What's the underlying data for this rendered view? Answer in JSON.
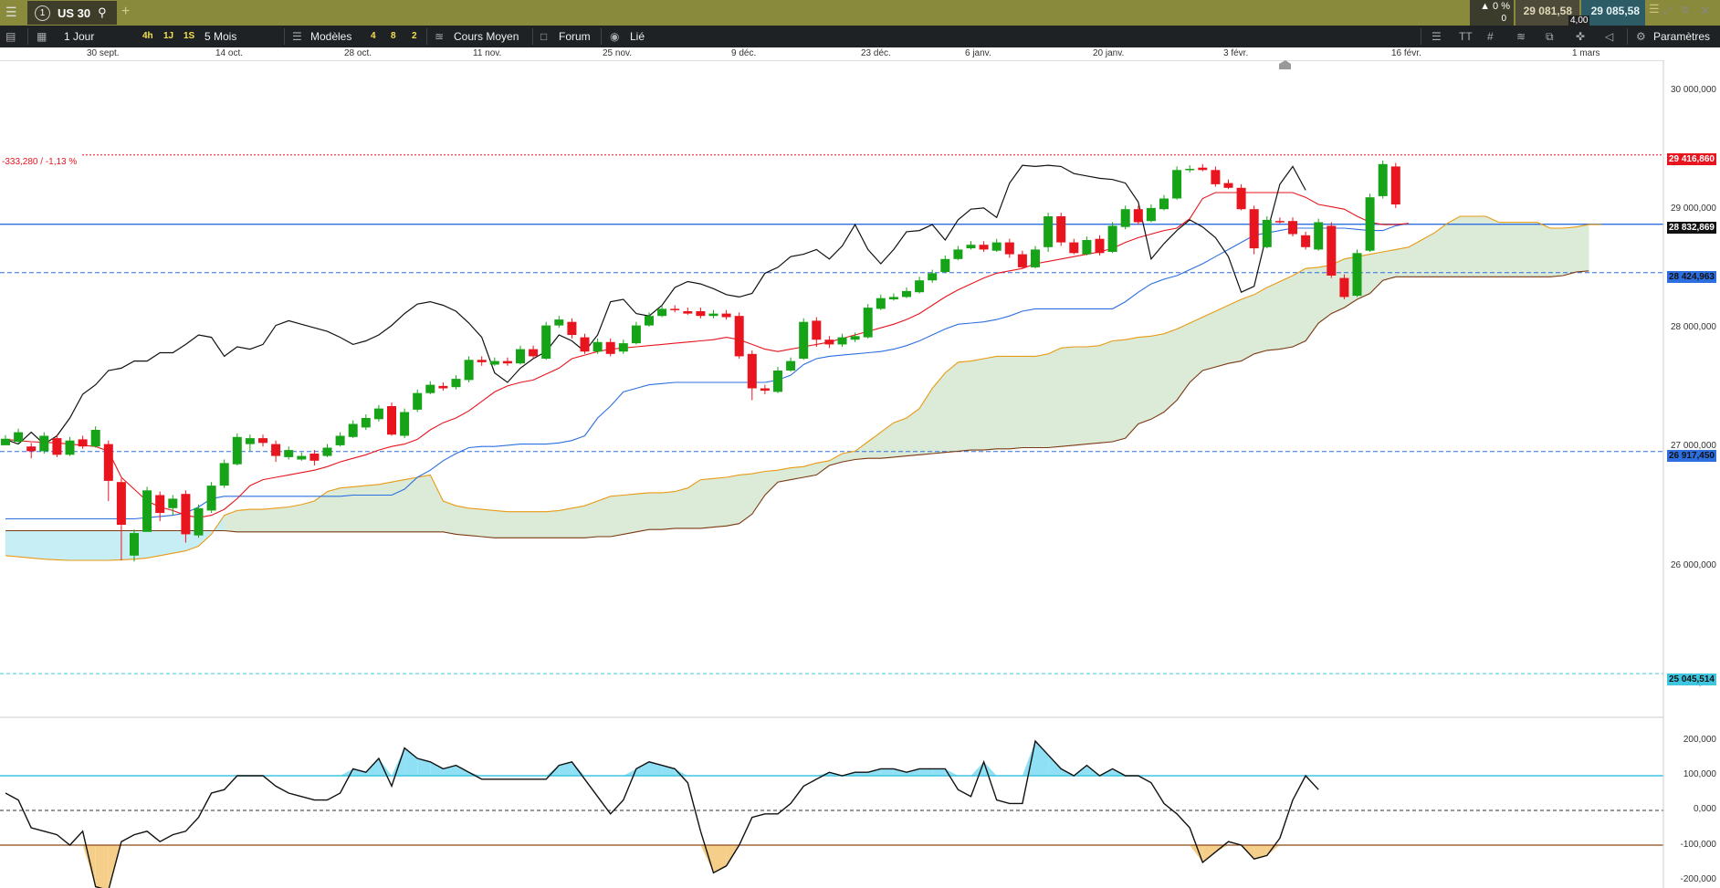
{
  "topbar": {
    "tab_number": "1",
    "tab_symbol": "US 30",
    "change_pct": "▲ 0 %",
    "change_count": "0",
    "bid": "29 081,58",
    "ask": "29 085,58",
    "spread": "4,00"
  },
  "toolbar": {
    "interval": "1 Jour",
    "btn_4h": "4h",
    "btn_1j": "1J",
    "btn_1s": "1S",
    "period": "5 Mois",
    "models": "Modèles",
    "n4": "4",
    "n8": "8",
    "n2": "2",
    "cours_moyen": "Cours Moyen",
    "forum": "Forum",
    "lie": "Lié",
    "font_btn": "TT",
    "params": "Paramètres"
  },
  "date_axis": [
    "30 sept.",
    "14 oct.",
    "28 oct.",
    "11 nov.",
    "25 nov.",
    "9 déc.",
    "23 déc.",
    "6 janv.",
    "20 janv.",
    "3 févr.",
    "16 févr.",
    "1 mars"
  ],
  "price_axis": [
    "30 000,000",
    "29 000,000",
    "28 000,000",
    "27 000,000",
    "26 000,000",
    "25 000,000"
  ],
  "osc_axis": [
    "200,000",
    "100,000",
    "0,000",
    "-100,000",
    "-200,000"
  ],
  "price_boxes": {
    "last": "29 416,860",
    "line1": "28 832,869",
    "line2": "28 424,963",
    "line3": "26 917,450",
    "line4": "25 045,514"
  },
  "change_label": "-333,280 / -1,13 %",
  "colors": {
    "bull": "#17a317",
    "bear": "#e8141e",
    "tenkan": "#e8141e",
    "kijun": "#2d6fe0",
    "chikou": "#111111",
    "senkou_a": "#e89a14",
    "senkou_b": "#7a3a12",
    "cloud": "#dcebd8",
    "cloud_alt": "#c8eef5",
    "hline_main": "#2d6fe0",
    "osc_pos": "#8fe0f5",
    "osc_neg": "#f5cf8a"
  },
  "chart_data": {
    "type": "candlestick",
    "instrument": "US 30",
    "x_range": [
      "30 sept.",
      "1 mars"
    ],
    "y_range": [
      25000,
      30400
    ],
    "last_price": 29416.86,
    "horizontal_levels": [
      28832.869,
      28424.963,
      26917.45,
      25045.514
    ],
    "candles": [
      [
        26970,
        27025,
        27000
      ],
      [
        27000,
        27080,
        26980
      ],
      [
        26960,
        26920,
        26860
      ],
      [
        26920,
        27050,
        26900
      ],
      [
        27030,
        26890,
        26870
      ],
      [
        26890,
        27010,
        26880
      ],
      [
        27020,
        26960,
        26940
      ],
      [
        26960,
        27100,
        26950
      ],
      [
        26980,
        26670,
        26500
      ],
      [
        26660,
        26300,
        26000
      ],
      [
        26040,
        26230,
        25990
      ],
      [
        26240,
        26590,
        26280
      ],
      [
        26550,
        26400,
        26330
      ],
      [
        26440,
        26520,
        26380
      ],
      [
        26560,
        26220,
        26150
      ],
      [
        26210,
        26440,
        26190
      ],
      [
        26420,
        26630,
        26400
      ],
      [
        26630,
        26820,
        26610
      ],
      [
        26810,
        27040,
        26800
      ],
      [
        26980,
        27030,
        26920
      ],
      [
        27030,
        26990,
        26960
      ],
      [
        26980,
        26880,
        26830
      ],
      [
        26870,
        26930,
        26850
      ],
      [
        26850,
        26880,
        26840
      ],
      [
        26900,
        26840,
        26800
      ],
      [
        26880,
        26950,
        26870
      ],
      [
        26970,
        27050,
        26960
      ],
      [
        27040,
        27150,
        27030
      ],
      [
        27120,
        27200,
        27100
      ],
      [
        27190,
        27280,
        27170
      ],
      [
        27300,
        27060,
        27050
      ],
      [
        27050,
        27250,
        27030
      ],
      [
        27270,
        27410,
        27250
      ],
      [
        27410,
        27480,
        27400
      ],
      [
        27470,
        27450,
        27430
      ],
      [
        27460,
        27530,
        27440
      ],
      [
        27520,
        27690,
        27500
      ],
      [
        27690,
        27670,
        27640
      ],
      [
        27650,
        27680,
        27640
      ],
      [
        27680,
        27660,
        27640
      ],
      [
        27660,
        27780,
        27650
      ],
      [
        27780,
        27720,
        27700
      ],
      [
        27700,
        27980,
        27690
      ],
      [
        27980,
        28030,
        27960
      ],
      [
        28010,
        27900,
        27870
      ],
      [
        27880,
        27760,
        27740
      ],
      [
        27760,
        27840,
        27740
      ],
      [
        27840,
        27740,
        27720
      ],
      [
        27760,
        27830,
        27740
      ],
      [
        27830,
        27980,
        27820
      ],
      [
        27980,
        28060,
        27970
      ],
      [
        28060,
        28120,
        28050
      ],
      [
        28120,
        28110,
        28090
      ],
      [
        28100,
        28080,
        28070
      ],
      [
        28100,
        28060,
        28040
      ],
      [
        28060,
        28080,
        28040
      ],
      [
        28080,
        28050,
        28030
      ],
      [
        28060,
        27720,
        27700
      ],
      [
        27740,
        27450,
        27350
      ],
      [
        27450,
        27430,
        27400
      ],
      [
        27420,
        27600,
        27410
      ],
      [
        27600,
        27680,
        27590
      ],
      [
        27700,
        28010,
        27690
      ],
      [
        28020,
        27860,
        27800
      ],
      [
        27860,
        27820,
        27790
      ],
      [
        27820,
        27880,
        27800
      ],
      [
        27860,
        27890,
        27840
      ],
      [
        27880,
        28130,
        27870
      ],
      [
        28120,
        28210,
        28110
      ],
      [
        28200,
        28220,
        28190
      ],
      [
        28220,
        28270,
        28210
      ],
      [
        28260,
        28360,
        28250
      ],
      [
        28360,
        28420,
        28340
      ],
      [
        28430,
        28540,
        28420
      ],
      [
        28540,
        28620,
        28530
      ],
      [
        28630,
        28660,
        28620
      ],
      [
        28660,
        28620,
        28600
      ],
      [
        28610,
        28680,
        28600
      ],
      [
        28680,
        28580,
        28550
      ],
      [
        28580,
        28470,
        28460
      ],
      [
        28470,
        28620,
        28460
      ],
      [
        28640,
        28900,
        28600
      ],
      [
        28900,
        28680,
        28650
      ],
      [
        28680,
        28590,
        28580
      ],
      [
        28580,
        28700,
        28570
      ],
      [
        28710,
        28590,
        28570
      ],
      [
        28600,
        28820,
        28590
      ],
      [
        28810,
        28960,
        28790
      ],
      [
        28960,
        28850,
        28830
      ],
      [
        28860,
        28970,
        28850
      ],
      [
        28960,
        29050,
        28950
      ],
      [
        29050,
        29290,
        29040
      ],
      [
        29290,
        29300,
        29270
      ],
      [
        29310,
        29290,
        29280
      ],
      [
        29290,
        29170,
        29150
      ],
      [
        29180,
        29140,
        29130
      ],
      [
        29140,
        28960,
        28950
      ],
      [
        28960,
        28630,
        28580
      ],
      [
        28640,
        28870,
        28630
      ],
      [
        28860,
        28850,
        28840
      ],
      [
        28860,
        28750,
        28730
      ],
      [
        28740,
        28640,
        28620
      ],
      [
        28620,
        28850,
        28610
      ],
      [
        28820,
        28400,
        28380
      ],
      [
        28380,
        28220,
        28200
      ],
      [
        28230,
        28590,
        28220
      ],
      [
        28610,
        29060,
        28600
      ],
      [
        29070,
        29340,
        29050
      ],
      [
        29320,
        29000,
        28970
      ]
    ],
    "tenkan_sen": [
      27020,
      27010,
      27000,
      26995,
      26990,
      26980,
      26970,
      26960,
      26920,
      26700,
      26600,
      26500,
      26450,
      26420,
      26380,
      26360,
      26380,
      26430,
      26520,
      26630,
      26680,
      26700,
      26720,
      26740,
      26760,
      26790,
      26830,
      26860,
      26890,
      26930,
      26960,
      26980,
      27020,
      27100,
      27160,
      27200,
      27260,
      27340,
      27420,
      27470,
      27500,
      27520,
      27570,
      27620,
      27700,
      27730,
      27760,
      27780,
      27790,
      27800,
      27810,
      27820,
      27830,
      27840,
      27850,
      27860,
      27880,
      27860,
      27820,
      27780,
      27760,
      27780,
      27800,
      27820,
      27840,
      27870,
      27900,
      27930,
      27960,
      27990,
      28030,
      28080,
      28150,
      28220,
      28280,
      28330,
      28380,
      28420,
      28440,
      28460,
      28500,
      28520,
      28540,
      28560,
      28580,
      28600,
      28630,
      28680,
      28720,
      28750,
      28780,
      28800,
      28880,
      29050,
      29100,
      29100,
      29100,
      29100,
      29100,
      29100,
      29100,
      29060,
      29000,
      28980,
      28960,
      28900,
      28850,
      28830,
      28830,
      28840
    ],
    "kijun_sen": [
      26350,
      26350,
      26350,
      26350,
      26350,
      26350,
      26350,
      26350,
      26350,
      26350,
      26350,
      26360,
      26370,
      26380,
      26400,
      26450,
      26520,
      26540,
      26540,
      26540,
      26540,
      26540,
      26540,
      26540,
      26540,
      26540,
      26540,
      26550,
      26550,
      26550,
      26550,
      26600,
      26700,
      26760,
      26840,
      26900,
      26950,
      26960,
      26960,
      26970,
      26980,
      26980,
      26980,
      26990,
      27010,
      27050,
      27200,
      27300,
      27420,
      27450,
      27480,
      27490,
      27500,
      27500,
      27500,
      27500,
      27500,
      27500,
      27500,
      27500,
      27520,
      27560,
      27650,
      27700,
      27720,
      27730,
      27740,
      27750,
      27760,
      27780,
      27810,
      27850,
      27900,
      27950,
      27990,
      28000,
      28010,
      28030,
      28060,
      28100,
      28120,
      28120,
      28120,
      28120,
      28120,
      28120,
      28120,
      28180,
      28260,
      28330,
      28370,
      28400,
      28450,
      28500,
      28560,
      28620,
      28680,
      28740,
      28760,
      28780,
      28800,
      28800,
      28800,
      28800,
      28800,
      28790,
      28780,
      28780,
      28820,
      28840
    ],
    "chikou_span": [
      27020,
      26980,
      27080,
      26980,
      27050,
      27200,
      27400,
      27480,
      27600,
      27620,
      27680,
      27680,
      27750,
      27750,
      27820,
      27900,
      27880,
      27720,
      27800,
      27780,
      27820,
      27980,
      28020,
      27990,
      27960,
      27930,
      27880,
      27820,
      27850,
      27900,
      27980,
      28080,
      28160,
      28180,
      28150,
      28100,
      28000,
      27880,
      27580,
      27500,
      27620,
      27700,
      27760,
      27900,
      27850,
      27760,
      27900,
      28180,
      28200,
      28080,
      28060,
      28150,
      28300,
      28350,
      28330,
      28290,
      28240,
      28220,
      28250,
      28420,
      28470,
      28560,
      28580,
      28620,
      28540,
      28650,
      28830,
      28620,
      28500,
      28620,
      28770,
      28780,
      28830,
      28700,
      28870,
      28960,
      28970,
      28890,
      29180,
      29330,
      29320,
      29330,
      29320,
      29260,
      29240,
      29220,
      29210,
      29180,
      29020,
      28540,
      28670,
      28780,
      28870,
      28810,
      28720,
      28560,
      28260,
      28310,
      28760,
      29170,
      29320,
      29120
    ],
    "senkou_span_a": [
      26040,
      26030,
      26020,
      26010,
      26005,
      26000,
      26000,
      26000,
      26000,
      26005,
      26010,
      26020,
      26040,
      26060,
      26080,
      26120,
      26220,
      26380,
      26420,
      26430,
      26430,
      26440,
      26450,
      26470,
      26500,
      26580,
      26610,
      26620,
      26630,
      26640,
      26660,
      26680,
      26700,
      26720,
      26500,
      26460,
      26440,
      26430,
      26420,
      26410,
      26410,
      26410,
      26410,
      26420,
      26440,
      26460,
      26500,
      26540,
      26550,
      26560,
      26570,
      26570,
      26580,
      26610,
      26680,
      26690,
      26700,
      26720,
      26730,
      26750,
      26760,
      26780,
      26790,
      26820,
      26840,
      26900,
      26920,
      27000,
      27080,
      27160,
      27200,
      27280,
      27450,
      27580,
      27670,
      27680,
      27700,
      27720,
      27720,
      27720,
      27720,
      27740,
      27790,
      27800,
      27800,
      27810,
      27850,
      27860,
      27880,
      27890,
      27910,
      27950,
      28000,
      28050,
      28100,
      28150,
      28200,
      28240,
      28300,
      28350,
      28400,
      28460,
      28470,
      28490,
      28540,
      28560,
      28580,
      28600,
      28620,
      28640,
      28700,
      28760,
      28840,
      28900,
      28900,
      28900,
      28850,
      28850,
      28850,
      28850,
      28800,
      28800,
      28810,
      28830,
      28830
    ],
    "senkou_span_b": [
      26250,
      26250,
      26250,
      26250,
      26250,
      26250,
      26250,
      26250,
      26250,
      26250,
      26250,
      26250,
      26250,
      26250,
      26250,
      26250,
      26250,
      26250,
      26240,
      26240,
      26240,
      26240,
      26240,
      26240,
      26240,
      26240,
      26240,
      26240,
      26240,
      26240,
      26240,
      26240,
      26240,
      26240,
      26240,
      26220,
      26210,
      26200,
      26190,
      26190,
      26190,
      26190,
      26190,
      26190,
      26190,
      26190,
      26200,
      26200,
      26220,
      26240,
      26260,
      26260,
      26270,
      26270,
      26270,
      26280,
      26290,
      26310,
      26390,
      26550,
      26660,
      26680,
      26700,
      26720,
      26800,
      26830,
      26850,
      26860,
      26860,
      26870,
      26880,
      26890,
      26900,
      26910,
      26920,
      26930,
      26930,
      26940,
      26940,
      26950,
      26950,
      26950,
      26960,
      26970,
      26980,
      26990,
      27000,
      27030,
      27150,
      27190,
      27250,
      27350,
      27500,
      27600,
      27630,
      27660,
      27680,
      27740,
      27770,
      27780,
      27800,
      27850,
      28000,
      28080,
      28130,
      28200,
      28250,
      28360,
      28390,
      28390,
      28390,
      28390,
      28390,
      28390,
      28390,
      28390,
      28390,
      28390,
      28390,
      28390,
      28390,
      28400,
      28430,
      28440
    ],
    "oscillator": {
      "range": [
        -200,
        210
      ],
      "levels": [
        100,
        0,
        -100
      ],
      "values": [
        50,
        30,
        -50,
        -60,
        -70,
        -100,
        -60,
        -220,
        -230,
        -90,
        -70,
        -60,
        -90,
        -70,
        -60,
        -20,
        50,
        60,
        100,
        100,
        100,
        70,
        50,
        40,
        30,
        30,
        50,
        120,
        110,
        150,
        70,
        180,
        150,
        140,
        120,
        130,
        110,
        90,
        90,
        90,
        90,
        90,
        90,
        130,
        140,
        90,
        40,
        -10,
        30,
        120,
        140,
        130,
        120,
        80,
        -60,
        -180,
        -160,
        -100,
        -20,
        -10,
        -10,
        20,
        70,
        90,
        110,
        100,
        110,
        110,
        120,
        120,
        110,
        120,
        120,
        120,
        60,
        40,
        140,
        30,
        20,
        20,
        200,
        160,
        120,
        100,
        130,
        100,
        120,
        100,
        100,
        80,
        20,
        -10,
        -50,
        -150,
        -120,
        -90,
        -100,
        -140,
        -130,
        -80,
        30,
        100,
        60
      ]
    }
  }
}
